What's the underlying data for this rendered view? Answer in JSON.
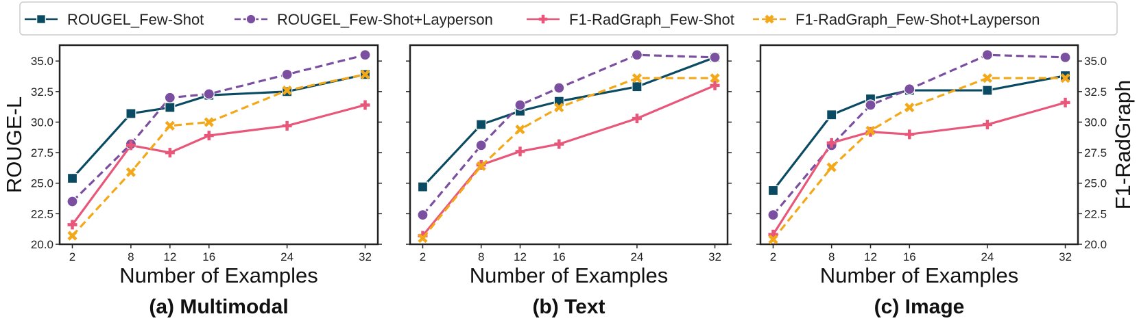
{
  "legend": {
    "items": [
      {
        "series": 0,
        "label": "ROUGEL_Few-Shot"
      },
      {
        "series": 1,
        "label": "ROUGEL_Few-Shot+Layperson"
      },
      {
        "series": 2,
        "label": "F1-RadGraph_Few-Shot"
      },
      {
        "series": 3,
        "label": "F1-RadGraph_Few-Shot+Layperson"
      }
    ]
  },
  "left_ylabel": "ROUGE-L",
  "right_ylabel": "F1-RadGraph",
  "chart_data": [
    {
      "type": "line",
      "title": "(a) Multimodal",
      "xlabel": "Number of Examples",
      "ylabel": "ROUGE-L",
      "y2label": "",
      "x": [
        2,
        8,
        12,
        16,
        24,
        32
      ],
      "xlim": [
        0.7,
        33.3
      ],
      "ylim": [
        20.0,
        36.3
      ],
      "yticks": [
        "20.0",
        "22.5",
        "25.0",
        "27.5",
        "30.0",
        "32.5",
        "35.0"
      ],
      "legend_position": "top, above plots",
      "grid": false,
      "series": [
        {
          "name": "ROUGEL_Few-Shot",
          "color": "#0b4a63",
          "marker": "square",
          "dash": "solid",
          "values": [
            25.4,
            30.7,
            31.2,
            32.2,
            32.5,
            33.9
          ]
        },
        {
          "name": "ROUGEL_Few-Shot+Layperson",
          "color": "#7b4fa0",
          "marker": "circle",
          "dash": "dash",
          "values": [
            23.5,
            28.2,
            32.0,
            32.3,
            33.9,
            35.5
          ]
        },
        {
          "name": "F1-RadGraph_Few-Shot",
          "color": "#e8567a",
          "marker": "plus",
          "dash": "solid",
          "values": [
            21.6,
            28.1,
            27.5,
            28.9,
            29.7,
            31.4
          ]
        },
        {
          "name": "F1-RadGraph_Few-Shot+Layperson",
          "color": "#f2a818",
          "marker": "x",
          "dash": "dash",
          "values": [
            20.7,
            25.9,
            29.7,
            30.0,
            32.6,
            33.9
          ]
        }
      ]
    },
    {
      "type": "line",
      "title": "(b) Text",
      "xlabel": "Number of Examples",
      "ylabel": "",
      "y2label": "",
      "x": [
        2,
        8,
        12,
        16,
        24,
        32
      ],
      "xlim": [
        0.7,
        33.3
      ],
      "ylim": [
        20.0,
        36.3
      ],
      "legend_position": "top, above plots",
      "grid": false,
      "series": [
        {
          "name": "ROUGEL_Few-Shot",
          "color": "#0b4a63",
          "marker": "square",
          "dash": "solid",
          "values": [
            24.7,
            29.8,
            30.9,
            31.7,
            32.9,
            35.3
          ]
        },
        {
          "name": "ROUGEL_Few-Shot+Layperson",
          "color": "#7b4fa0",
          "marker": "circle",
          "dash": "dash",
          "values": [
            22.4,
            28.1,
            31.4,
            32.8,
            35.5,
            35.3
          ]
        },
        {
          "name": "F1-RadGraph_Few-Shot",
          "color": "#e8567a",
          "marker": "plus",
          "dash": "solid",
          "values": [
            20.7,
            26.5,
            27.6,
            28.2,
            30.3,
            33.0
          ]
        },
        {
          "name": "F1-RadGraph_Few-Shot+Layperson",
          "color": "#f2a818",
          "marker": "x",
          "dash": "dash",
          "values": [
            20.5,
            26.4,
            29.4,
            31.2,
            33.6,
            33.6
          ]
        }
      ]
    },
    {
      "type": "line",
      "title": "(c) Image",
      "xlabel": "Number of Examples",
      "ylabel": "",
      "y2label": "F1-RadGraph",
      "x": [
        2,
        8,
        12,
        16,
        24,
        32
      ],
      "xlim": [
        0.7,
        33.3
      ],
      "ylim": [
        20.0,
        36.3
      ],
      "yticks": [
        "20.0",
        "22.5",
        "25.0",
        "27.5",
        "30.0",
        "32.5",
        "35.0"
      ],
      "legend_position": "top, above plots",
      "grid": false,
      "series": [
        {
          "name": "ROUGEL_Few-Shot",
          "color": "#0b4a63",
          "marker": "square",
          "dash": "solid",
          "values": [
            24.4,
            30.6,
            31.9,
            32.6,
            32.6,
            33.8
          ]
        },
        {
          "name": "ROUGEL_Few-Shot+Layperson",
          "color": "#7b4fa0",
          "marker": "circle",
          "dash": "dash",
          "values": [
            22.4,
            28.1,
            31.4,
            32.7,
            35.5,
            35.3
          ]
        },
        {
          "name": "F1-RadGraph_Few-Shot",
          "color": "#e8567a",
          "marker": "plus",
          "dash": "solid",
          "values": [
            20.8,
            28.3,
            29.2,
            29.0,
            29.8,
            31.6
          ]
        },
        {
          "name": "F1-RadGraph_Few-Shot+Layperson",
          "color": "#f2a818",
          "marker": "x",
          "dash": "dash",
          "values": [
            20.4,
            26.3,
            29.3,
            31.2,
            33.6,
            33.6
          ]
        }
      ]
    }
  ]
}
